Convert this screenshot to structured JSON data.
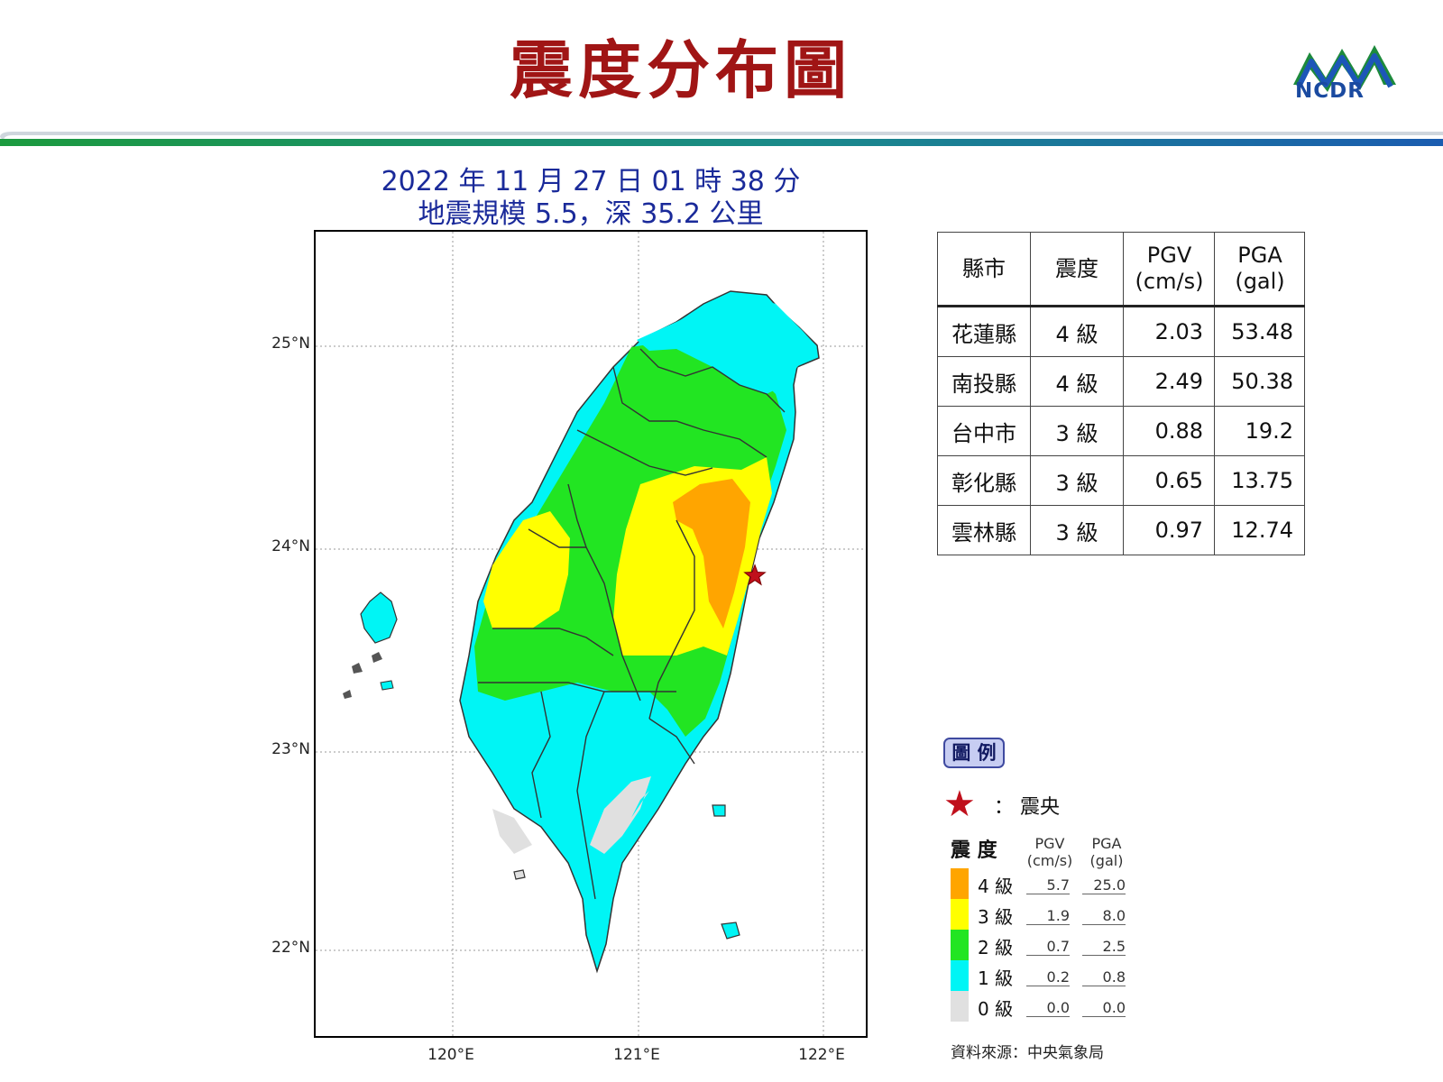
{
  "header": {
    "title": "震度分布圖",
    "logo_text": "NCDR"
  },
  "event": {
    "time_line": "2022 年 11 月 27 日 01 時 38 分",
    "magnitude_line": "地震規模 5.5，深 35.2 公里"
  },
  "map": {
    "lat_labels": [
      "25°N",
      "24°N",
      "23°N",
      "22°N"
    ],
    "lon_labels": [
      "120°E",
      "121°E",
      "122°E"
    ],
    "epicenter": {
      "lon": 121.63,
      "lat": 23.86
    }
  },
  "stats_table": {
    "headers": {
      "county": "縣市",
      "intensity": "震度",
      "pgv_1": "PGV",
      "pgv_2": "(cm/s)",
      "pga_1": "PGA",
      "pga_2": "(gal)"
    },
    "rows": [
      {
        "county": "花蓮縣",
        "intensity": "4 級",
        "pgv": "2.03",
        "pga": "53.48"
      },
      {
        "county": "南投縣",
        "intensity": "4 級",
        "pgv": "2.49",
        "pga": "50.38"
      },
      {
        "county": "台中市",
        "intensity": "3 級",
        "pgv": "0.88",
        "pga": "19.2"
      },
      {
        "county": "彰化縣",
        "intensity": "3 級",
        "pgv": "0.65",
        "pga": "13.75"
      },
      {
        "county": "雲林縣",
        "intensity": "3 級",
        "pgv": "0.97",
        "pga": "12.74"
      }
    ]
  },
  "legend": {
    "badge": "圖 例",
    "epicenter_label": "：  震央",
    "intensity_header": "震 度",
    "pgv_header_1": "PGV",
    "pgv_header_2": "(cm/s)",
    "pga_header_1": "PGA",
    "pga_header_2": "(gal)",
    "levels": [
      {
        "label": "4 級",
        "pgv": "5.7",
        "pga": "25.0",
        "color": "#ffa500"
      },
      {
        "label": "3 級",
        "pgv": "1.9",
        "pga": "8.0",
        "color": "#ffff00"
      },
      {
        "label": "2 級",
        "pgv": "0.7",
        "pga": "2.5",
        "color": "#22e522"
      },
      {
        "label": "1 級",
        "pgv": "0.2",
        "pga": "0.8",
        "color": "#00f5f5"
      },
      {
        "label": "0 級",
        "pgv": "0.0",
        "pga": "0.0",
        "color": "#e0e0e0"
      }
    ],
    "source": "資料來源：中央氣象局"
  }
}
